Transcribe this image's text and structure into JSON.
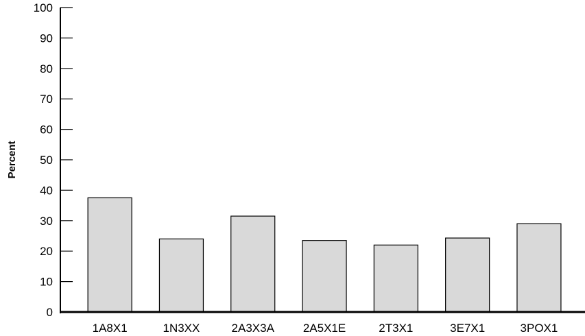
{
  "chart_data": {
    "type": "bar",
    "title": "",
    "xlabel": "",
    "ylabel": "Percent",
    "categories": [
      "1A8X1",
      "1N3XX",
      "2A3X3A",
      "2A5X1E",
      "2T3X1",
      "3E7X1",
      "3POX1"
    ],
    "values": [
      37.5,
      24,
      31.5,
      23.5,
      22,
      24.3,
      29
    ],
    "ylim": [
      0,
      100
    ],
    "yticks": [
      0,
      10,
      20,
      30,
      40,
      50,
      60,
      70,
      80,
      90,
      100
    ],
    "ytick_labels": [
      "0",
      "10",
      "20",
      "30",
      "40",
      "50",
      "60",
      "70",
      "80",
      "90",
      "100"
    ],
    "grid": false,
    "legend": "none",
    "bar_color": "#d9d9d9",
    "bar_edge_color": "#000000",
    "axis_color": "#000000"
  }
}
